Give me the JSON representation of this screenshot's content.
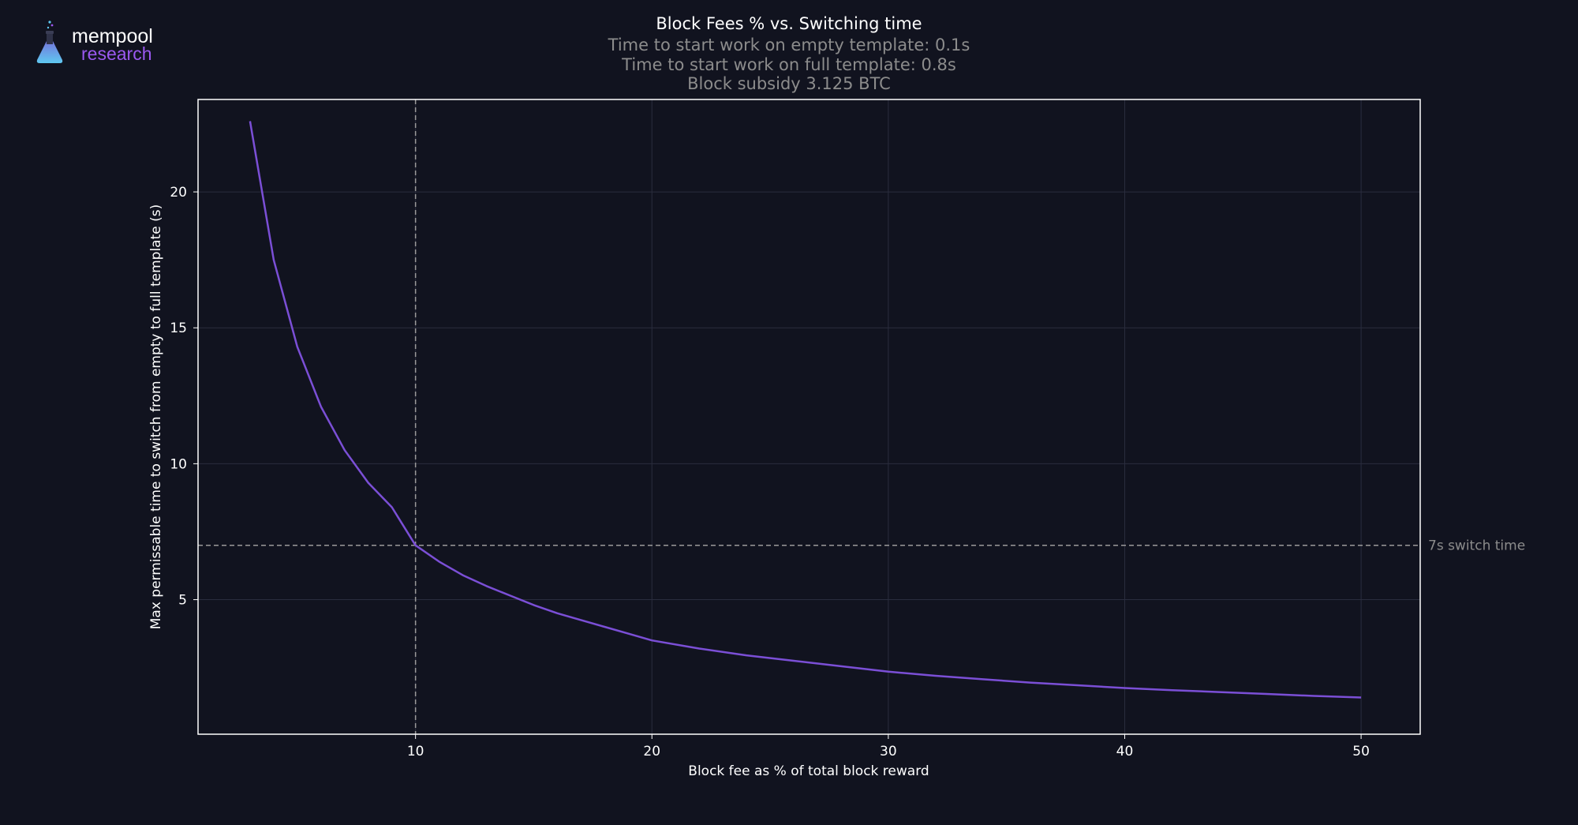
{
  "logo": {
    "word_top": "mempool",
    "word_bottom": "research",
    "icon": "flask-icon",
    "colors": {
      "word_top": "#ffffff",
      "word_bottom": "#9b59f0",
      "flask_top": "#7b5cd6",
      "flask_bottom": "#5fc8f0"
    }
  },
  "chart_data": {
    "type": "line",
    "title": "Block Fees % vs. Switching time",
    "subtitle_lines": [
      "Time to start work on empty template: 0.1s",
      "Time to start work on full template: 0.8s",
      "Block subsidy 3.125 BTC"
    ],
    "xlabel": "Block fee as % of total block reward",
    "ylabel": "Max permissable time to switch from empty to full template (s)",
    "xlim": [
      0.8,
      52.5
    ],
    "ylim": [
      0.05,
      23.4
    ],
    "xticks": [
      10,
      20,
      30,
      40,
      50
    ],
    "yticks": [
      5,
      10,
      15,
      20
    ],
    "grid": true,
    "series": [
      {
        "color": "#7b4fd6",
        "x": [
          3.0,
          4.0,
          5.0,
          6.0,
          7.0,
          8.0,
          9.0,
          10.0,
          11.0,
          12.0,
          13.0,
          14.0,
          15.0,
          16.0,
          17.0,
          18.0,
          19.0,
          20.0,
          22.0,
          24.0,
          26.0,
          28.0,
          30.0,
          32.0,
          34.0,
          36.0,
          38.0,
          40.0,
          42.0,
          44.0,
          46.0,
          48.0,
          50.0
        ],
        "y": [
          22.6,
          17.5,
          14.3,
          12.1,
          10.5,
          9.3,
          8.4,
          7.0,
          6.4,
          5.9,
          5.5,
          5.15,
          4.8,
          4.5,
          4.25,
          4.0,
          3.75,
          3.5,
          3.2,
          2.95,
          2.75,
          2.55,
          2.35,
          2.2,
          2.07,
          1.95,
          1.85,
          1.75,
          1.67,
          1.6,
          1.53,
          1.46,
          1.4
        ]
      }
    ],
    "reference_lines": [
      {
        "orientation": "horizontal",
        "value": 7,
        "label": "7s switch time",
        "color": "#9a9a9a"
      },
      {
        "orientation": "vertical",
        "value": 10,
        "color": "#9a9a9a"
      }
    ],
    "colors": {
      "background": "#11131f",
      "frame": "#ffffff",
      "grid": "#2a2d3e",
      "text": "#ffffff",
      "muted_text": "#8c8c8c"
    }
  }
}
